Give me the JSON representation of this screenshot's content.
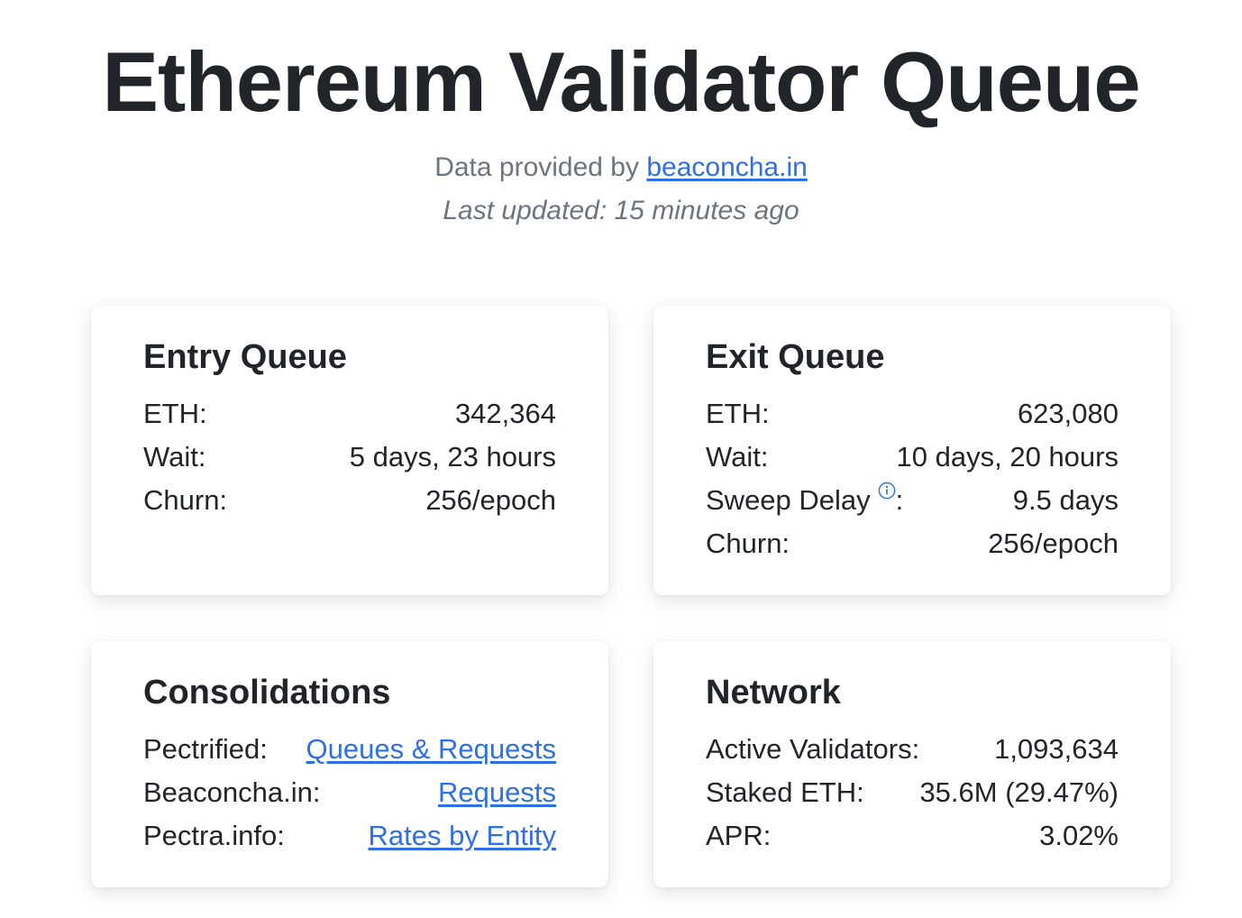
{
  "header": {
    "title": "Ethereum Validator Queue",
    "provided_prefix": "Data provided by ",
    "provided_link": "beaconcha.in",
    "last_updated": "Last updated: 15 minutes ago"
  },
  "entry_queue": {
    "title": "Entry Queue",
    "eth_label": "ETH:",
    "eth_value": "342,364",
    "wait_label": "Wait:",
    "wait_value": "5 days, 23 hours",
    "churn_label": "Churn:",
    "churn_value": "256/epoch"
  },
  "exit_queue": {
    "title": "Exit Queue",
    "eth_label": "ETH:",
    "eth_value": "623,080",
    "wait_label": "Wait:",
    "wait_value": "10 days, 20 hours",
    "sweep_label": "Sweep Delay",
    "sweep_colon": ":",
    "sweep_value": "9.5 days",
    "churn_label": "Churn:",
    "churn_value": "256/epoch"
  },
  "consolidations": {
    "title": "Consolidations",
    "rows": [
      {
        "label": "Pectrified:",
        "link": "Queues & Requests"
      },
      {
        "label": "Beaconcha.in:",
        "link": "Requests"
      },
      {
        "label": "Pectra.info:",
        "link": "Rates by Entity"
      }
    ]
  },
  "network": {
    "title": "Network",
    "active_label": "Active Validators:",
    "active_value": "1,093,634",
    "staked_label": "Staked ETH:",
    "staked_value": "35.6M (29.47%)",
    "apr_label": "APR:",
    "apr_value": "3.02%"
  },
  "icons": {
    "sweep_info": "info-icon"
  },
  "colors": {
    "link": "#2f6fe4",
    "text": "#212529",
    "muted": "#6c757d"
  }
}
